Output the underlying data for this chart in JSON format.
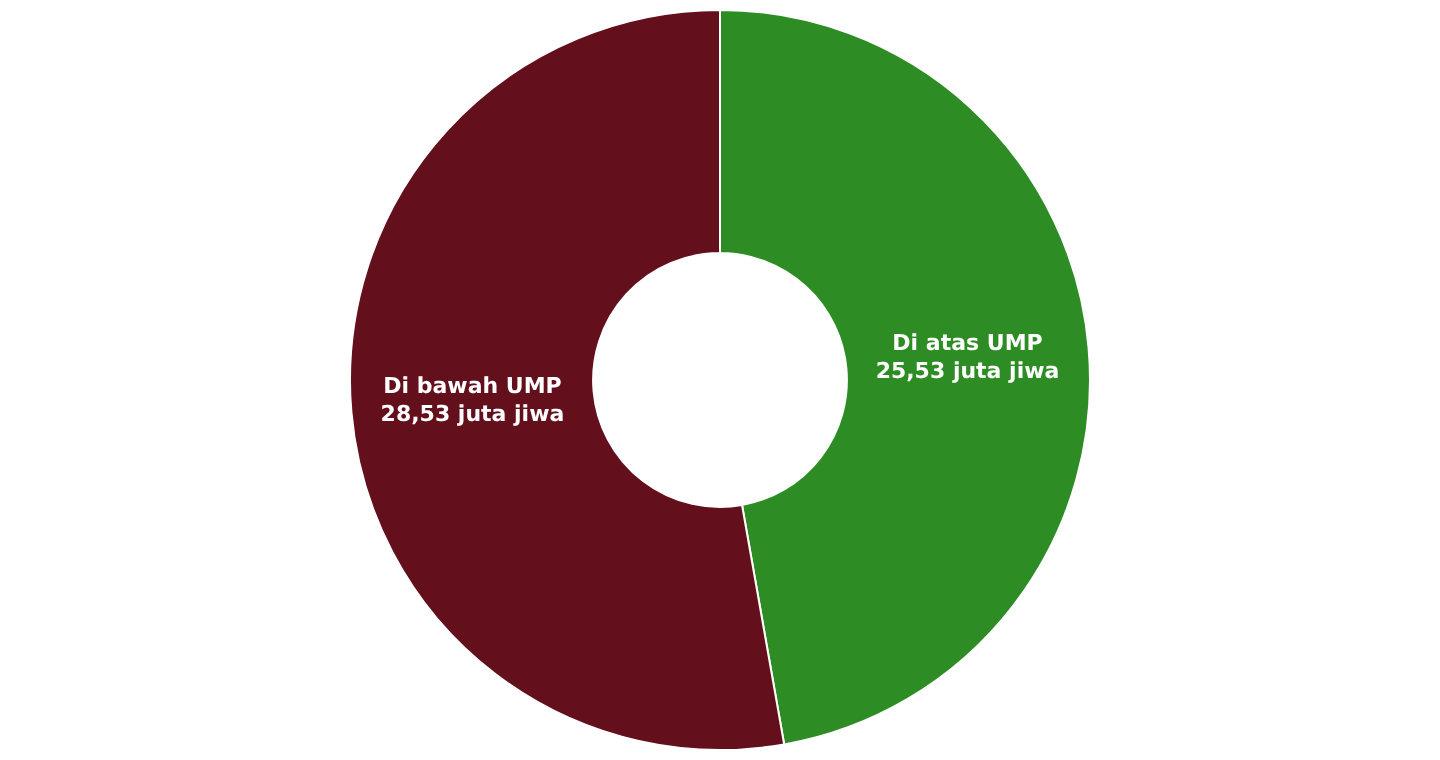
{
  "chart_data": {
    "type": "donut",
    "categories": [
      "Di atas UMP",
      "Di bawah UMP"
    ],
    "values": [
      25.53,
      28.53
    ],
    "value_labels": [
      "25,53 juta jiwa",
      "28,53 juta jiwa"
    ],
    "colors": [
      "#2e8c24",
      "#630f1c"
    ],
    "legend": false
  }
}
